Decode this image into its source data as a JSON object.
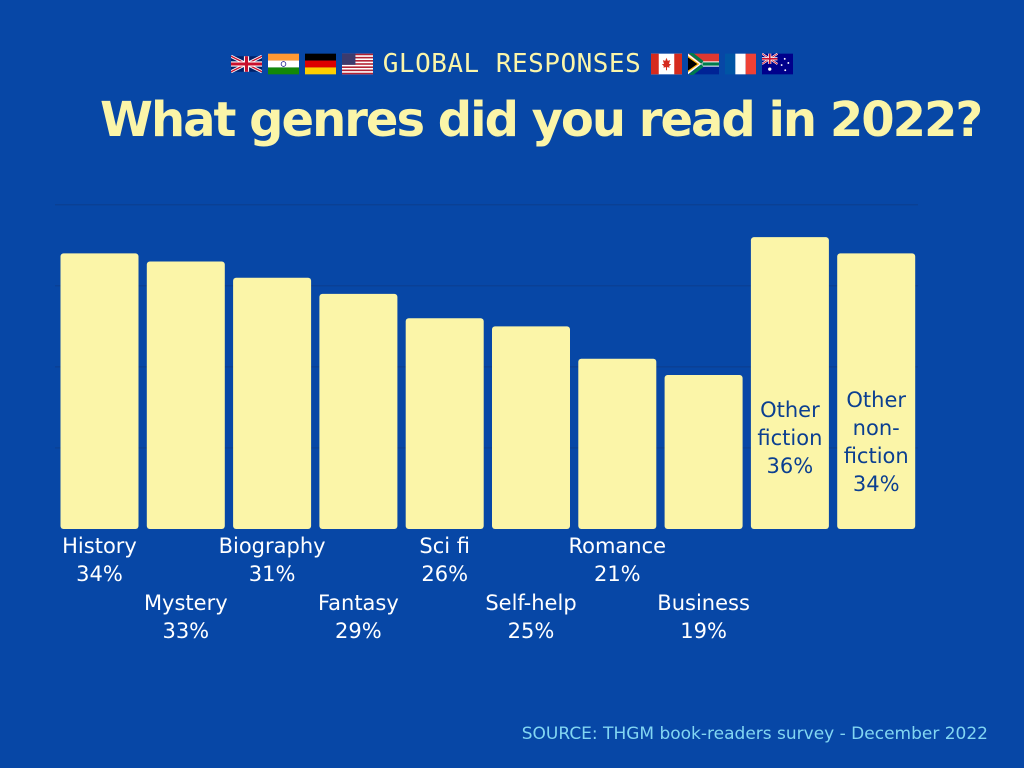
{
  "header": {
    "kicker": "GLOBAL RESPONSES",
    "flags_left": [
      "uk-flag-icon",
      "india-flag-icon",
      "germany-flag-icon",
      "usa-flag-icon"
    ],
    "flags_right": [
      "canada-flag-icon",
      "south-africa-flag-icon",
      "france-flag-icon",
      "australia-flag-icon"
    ],
    "title": "What genres did you read in 2022?"
  },
  "footer": {
    "source": "SOURCE: THGM book-readers survey - December 2022"
  },
  "colors": {
    "background": "#0747a6",
    "bar": "#fbf5a8",
    "label_outside": "#ffffff",
    "label_inside": "#0b3f91",
    "source": "#82d6f2"
  },
  "chart_data": {
    "type": "bar",
    "title": "What genres did you read in 2022?",
    "categories": [
      "History",
      "Mystery",
      "Biography",
      "Fantasy",
      "Sci fi",
      "Self-help",
      "Romance",
      "Business",
      "Other fiction",
      "Other non-fiction"
    ],
    "values": [
      34,
      33,
      31,
      29,
      26,
      25,
      21,
      19,
      36,
      34
    ],
    "value_labels": [
      "34%",
      "33%",
      "31%",
      "29%",
      "26%",
      "25%",
      "21%",
      "19%",
      "36%",
      "34%"
    ],
    "label_lines": [
      [
        "History",
        "34%"
      ],
      [
        "Mystery",
        "33%"
      ],
      [
        "Biography",
        "31%"
      ],
      [
        "Fantasy",
        "29%"
      ],
      [
        "Sci fi",
        "26%"
      ],
      [
        "Self-help",
        "25%"
      ],
      [
        "Romance",
        "21%"
      ],
      [
        "Business",
        "19%"
      ],
      [
        "Other",
        "fiction",
        "36%"
      ],
      [
        "Other",
        "non-",
        "fiction",
        "34%"
      ]
    ],
    "label_position": [
      "below",
      "below",
      "below",
      "below",
      "below",
      "below",
      "below",
      "below",
      "inside",
      "inside"
    ],
    "label_offset_rows": [
      0,
      1,
      0,
      1,
      0,
      1,
      0,
      1,
      0,
      0
    ],
    "ylim": [
      0,
      40
    ],
    "gridlines": [
      10,
      20,
      30,
      40
    ],
    "grid": true,
    "xlabel": "",
    "ylabel": ""
  }
}
